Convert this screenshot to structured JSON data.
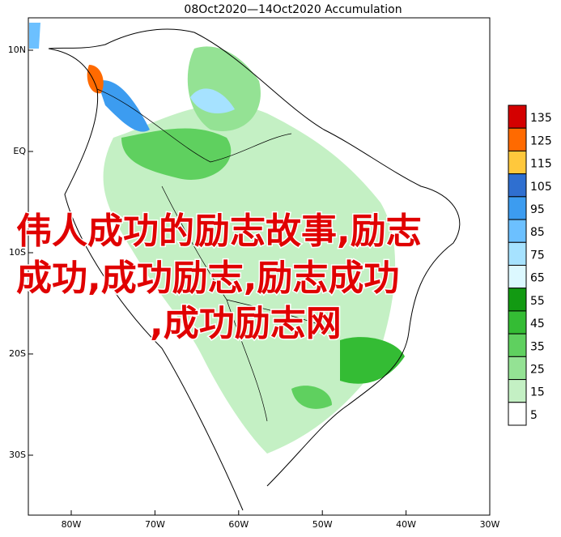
{
  "map": {
    "title": "08Oct2020—14Oct2020 Accumulation",
    "lat_labels": [
      "10N",
      "EQ",
      "10S",
      "20S",
      "30S"
    ],
    "lon_labels": [
      "80W",
      "70W",
      "60W",
      "50W",
      "40W",
      "30W"
    ],
    "legend": [
      {
        "value": 135,
        "color": "#d40000"
      },
      {
        "value": 125,
        "color": "#ff6a00"
      },
      {
        "value": 115,
        "color": "#ffc83c"
      },
      {
        "value": 105,
        "color": "#2f6fd0"
      },
      {
        "value": 95,
        "color": "#3c9cf0"
      },
      {
        "value": 85,
        "color": "#6cc0ff"
      },
      {
        "value": 75,
        "color": "#a6e2ff"
      },
      {
        "value": 65,
        "color": "#dcf8ff"
      },
      {
        "value": 55,
        "color": "#129a12"
      },
      {
        "value": 45,
        "color": "#34bc34"
      },
      {
        "value": 35,
        "color": "#5fd05f"
      },
      {
        "value": 25,
        "color": "#94e294"
      },
      {
        "value": 15,
        "color": "#c4f0c4"
      },
      {
        "value": 5,
        "color": "#ffffff"
      }
    ],
    "overlay": [
      "伟人成功的励志故事,励志",
      "成功,成功励志,励志成功",
      ",成功励志网"
    ]
  }
}
